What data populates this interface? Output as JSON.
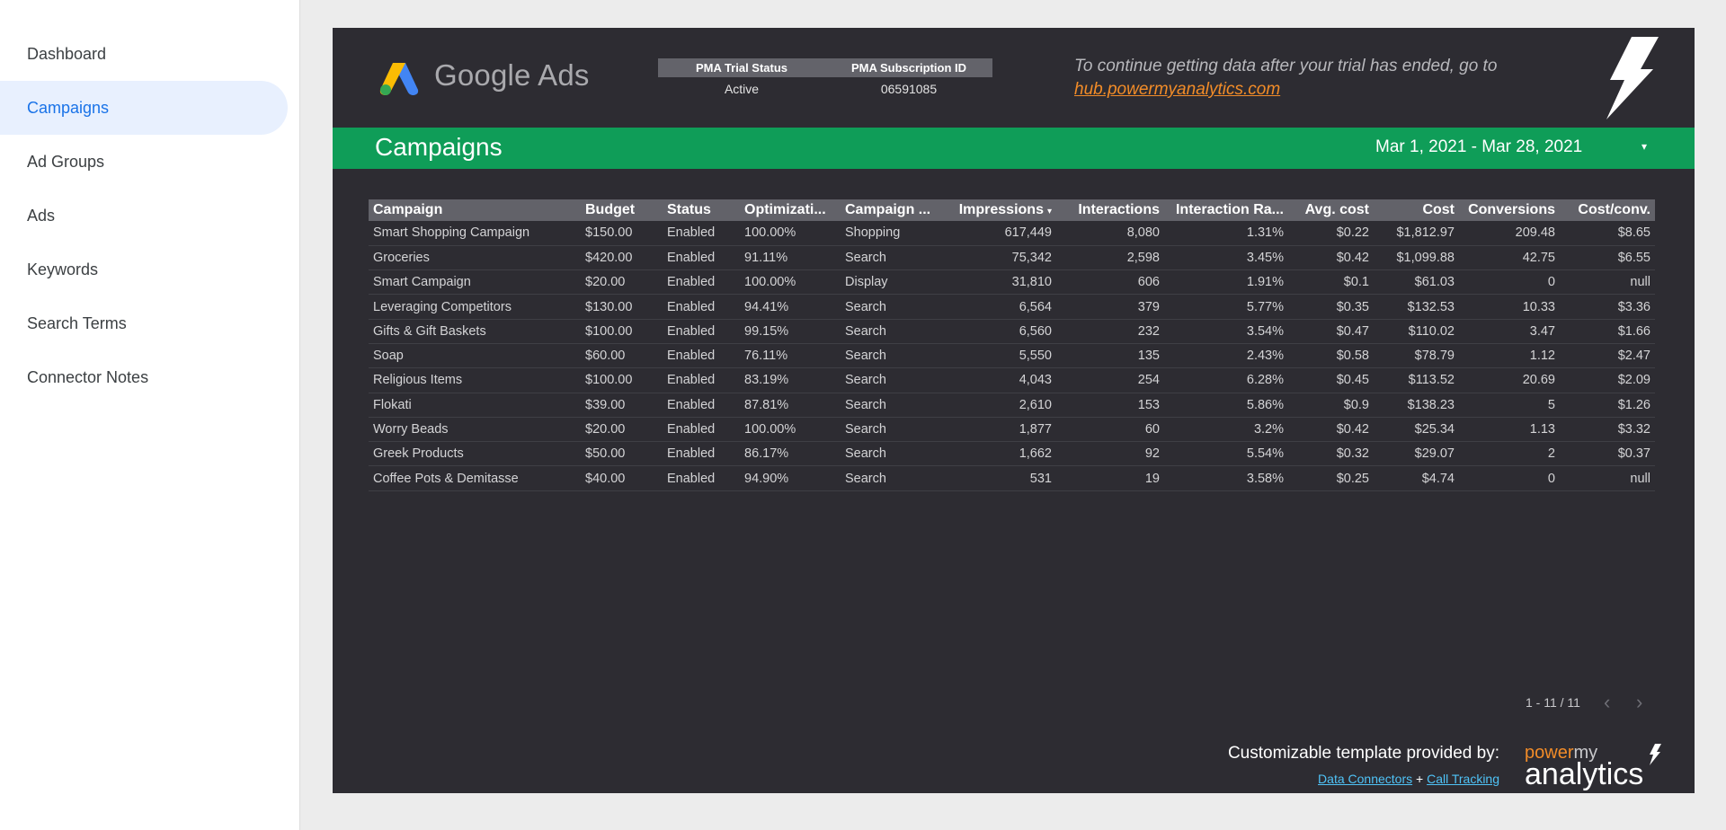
{
  "sidebar": {
    "items": [
      {
        "label": "Dashboard",
        "active": false
      },
      {
        "label": "Campaigns",
        "active": true
      },
      {
        "label": "Ad Groups",
        "active": false
      },
      {
        "label": "Ads",
        "active": false
      },
      {
        "label": "Keywords",
        "active": false
      },
      {
        "label": "Search Terms",
        "active": false
      },
      {
        "label": "Connector Notes",
        "active": false
      }
    ]
  },
  "header": {
    "logo_text": "Google Ads",
    "pma_trial_status_label": "PMA Trial Status",
    "pma_subscription_id_label": "PMA Subscription ID",
    "pma_trial_status_value": "Active",
    "pma_subscription_id_value": "06591085",
    "trial_note": "To continue getting data after your trial has ended, go to",
    "trial_link": "hub.powermyanalytics.com"
  },
  "title_bar": {
    "title": "Campaigns",
    "date_range": "Mar 1, 2021 - Mar 28, 2021",
    "date_caret": "▾"
  },
  "table": {
    "columns": [
      "Campaign",
      "Budget",
      "Status",
      "Optimizati...",
      "Campaign ...",
      "Impressions",
      "Interactions",
      "Interaction Ra...",
      "Avg. cost",
      "Cost",
      "Conversions",
      "Cost/conv."
    ],
    "sort_caret": "▾",
    "rows": [
      [
        "Smart Shopping Campaign",
        "$150.00",
        "Enabled",
        "100.00%",
        "Shopping",
        "617,449",
        "8,080",
        "1.31%",
        "$0.22",
        "$1,812.97",
        "209.48",
        "$8.65"
      ],
      [
        "Groceries",
        "$420.00",
        "Enabled",
        "91.11%",
        "Search",
        "75,342",
        "2,598",
        "3.45%",
        "$0.42",
        "$1,099.88",
        "42.75",
        "$6.55"
      ],
      [
        "Smart Campaign",
        "$20.00",
        "Enabled",
        "100.00%",
        "Display",
        "31,810",
        "606",
        "1.91%",
        "$0.1",
        "$61.03",
        "0",
        "null"
      ],
      [
        "Leveraging Competitors",
        "$130.00",
        "Enabled",
        "94.41%",
        "Search",
        "6,564",
        "379",
        "5.77%",
        "$0.35",
        "$132.53",
        "10.33",
        "$3.36"
      ],
      [
        "Gifts & Gift Baskets",
        "$100.00",
        "Enabled",
        "99.15%",
        "Search",
        "6,560",
        "232",
        "3.54%",
        "$0.47",
        "$110.02",
        "3.47",
        "$1.66"
      ],
      [
        "Soap",
        "$60.00",
        "Enabled",
        "76.11%",
        "Search",
        "5,550",
        "135",
        "2.43%",
        "$0.58",
        "$78.79",
        "1.12",
        "$2.47"
      ],
      [
        "Religious Items",
        "$100.00",
        "Enabled",
        "83.19%",
        "Search",
        "4,043",
        "254",
        "6.28%",
        "$0.45",
        "$113.52",
        "20.69",
        "$2.09"
      ],
      [
        "Flokati",
        "$39.00",
        "Enabled",
        "87.81%",
        "Search",
        "2,610",
        "153",
        "5.86%",
        "$0.9",
        "$138.23",
        "5",
        "$1.26"
      ],
      [
        "Worry Beads",
        "$20.00",
        "Enabled",
        "100.00%",
        "Search",
        "1,877",
        "60",
        "3.2%",
        "$0.42",
        "$25.34",
        "1.13",
        "$3.32"
      ],
      [
        "Greek Products",
        "$50.00",
        "Enabled",
        "86.17%",
        "Search",
        "1,662",
        "92",
        "5.54%",
        "$0.32",
        "$29.07",
        "2",
        "$0.37"
      ],
      [
        "Coffee Pots & Demitasse",
        "$40.00",
        "Enabled",
        "94.90%",
        "Search",
        "531",
        "19",
        "3.58%",
        "$0.25",
        "$4.74",
        "0",
        "null"
      ]
    ]
  },
  "pager": {
    "text": "1 - 11 / 11",
    "prev_icon": "‹",
    "next_icon": "›"
  },
  "footer": {
    "provided_by": "Customizable template provided by:",
    "link_data_connectors": "Data Connectors",
    "plus": "+",
    "link_call_tracking": "Call Tracking",
    "brand_power": "power",
    "brand_my": "my",
    "brand_analytics": "analytics"
  },
  "colors": {
    "report_bg": "#2d2c32",
    "title_bar_green": "#0f9d58",
    "sidebar_active_bg": "#e8f0fe",
    "sidebar_active_text": "#1a73e8",
    "link_orange": "#f28c28",
    "footer_link_blue": "#4fc3f7"
  }
}
